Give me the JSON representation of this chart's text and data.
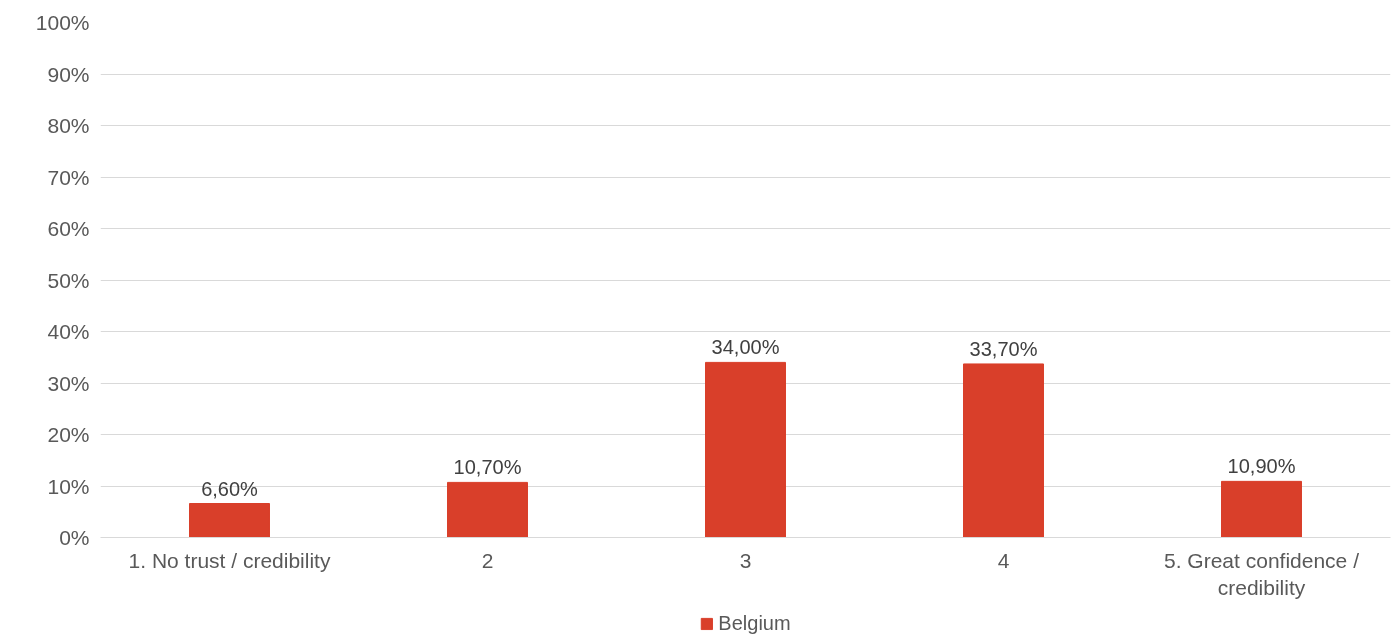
{
  "chart_data": {
    "type": "bar",
    "categories": [
      "1. No trust / credibility",
      "2",
      "3",
      "4",
      "5. Great confidence / credibility"
    ],
    "series": [
      {
        "name": "Belgium",
        "color": "#d93f2a",
        "values": [
          6.6,
          10.7,
          34.0,
          33.7,
          10.9
        ],
        "value_labels": [
          "6,60%",
          "10,70%",
          "34,00%",
          "33,70%",
          "10,90%"
        ]
      }
    ],
    "ylim": [
      0,
      100
    ],
    "yticks": [
      {
        "value": 0,
        "label": "0%"
      },
      {
        "value": 10,
        "label": "10%"
      },
      {
        "value": 20,
        "label": "20%"
      },
      {
        "value": 30,
        "label": "30%"
      },
      {
        "value": 40,
        "label": "40%"
      },
      {
        "value": 50,
        "label": "50%"
      },
      {
        "value": 60,
        "label": "60%"
      },
      {
        "value": 70,
        "label": "70%"
      },
      {
        "value": 80,
        "label": "80%"
      },
      {
        "value": 90,
        "label": "90%"
      },
      {
        "value": 100,
        "label": "100%"
      }
    ],
    "grid": "y",
    "legend": "bottom"
  }
}
